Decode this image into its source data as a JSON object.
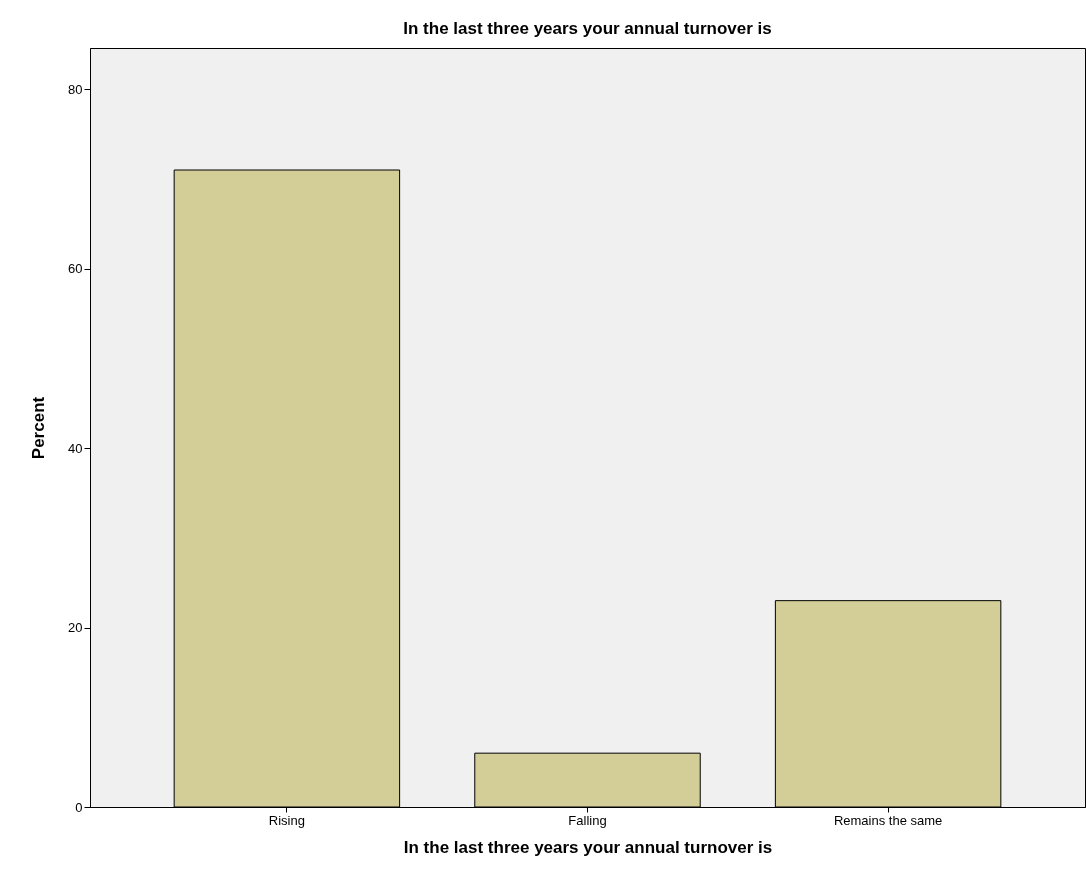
{
  "chart_data": {
    "type": "bar",
    "title": "In the last three years your annual turnover is",
    "xlabel": "In the last three years your annual turnover is",
    "ylabel": "Percent",
    "categories": [
      "Rising",
      "Falling",
      "Remains the same"
    ],
    "values": [
      71,
      6,
      23
    ],
    "color": "#d3ce97",
    "ylim": [
      0,
      84.6
    ],
    "yticks": [
      0,
      20,
      40,
      60,
      80
    ],
    "grid": false
  }
}
